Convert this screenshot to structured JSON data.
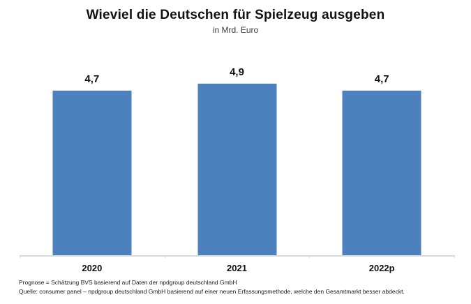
{
  "chart_data": {
    "type": "bar",
    "title": "Wieviel die Deutschen für Spielzeug ausgeben",
    "subtitle": "in Mrd. Euro",
    "categories": [
      "2020",
      "2021",
      "2022p"
    ],
    "values": [
      4.7,
      4.9,
      4.7
    ],
    "value_labels": [
      "4,7",
      "4,9",
      "4,7"
    ],
    "ylabel": "",
    "xlabel": "",
    "ylim": [
      0,
      5.6
    ],
    "grid": false,
    "legend": "none",
    "bar_color": "#4d81bd",
    "axis_color": "#d9d9d9",
    "text_color": "#111111"
  },
  "footnotes": {
    "line1": "Prognose = Schätzung BVS basierend auf Daten der  npdgroup deutschland GmbH",
    "line2": "Quelle: consumer panel – npdgroup deutschland GmbH basierend auf einer neuen  Erfassungsmethode, welche den Gesamtmarkt besser abdeckt."
  }
}
